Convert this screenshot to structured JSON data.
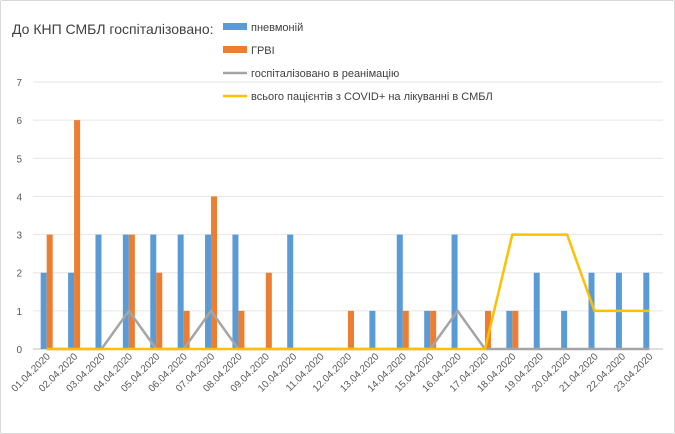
{
  "chart_data": {
    "type": "bar",
    "title": "До КНП СМБЛ госпіталізовано:",
    "xlabel": "",
    "ylabel": "",
    "ylim": [
      0,
      7
    ],
    "yticks": [
      "0",
      "1",
      "2",
      "3",
      "4",
      "5",
      "6",
      "7"
    ],
    "grid": true,
    "legend_position": "top",
    "categories": [
      "01.04.2020",
      "02.04.2020",
      "03.04.2020",
      "04.04.2020",
      "05.04.2020",
      "06.04.2020",
      "07.04.2020",
      "08.04.2020",
      "09.04.2020",
      "10.04.2020",
      "11.04.2020",
      "12.04.2020",
      "13.04.2020",
      "14.04.2020",
      "15.04.2020",
      "16.04.2020",
      "17.04.2020",
      "18.04.2020",
      "19.04.2020",
      "20.04.2020",
      "21.04.2020",
      "22.04.2020",
      "23.04.2020"
    ],
    "series": [
      {
        "name": "пневмоній",
        "kind": "bar",
        "color": "#5b9bd5",
        "values": [
          2,
          2,
          3,
          3,
          3,
          3,
          3,
          3,
          0,
          3,
          0,
          0,
          1,
          3,
          1,
          3,
          0,
          1,
          2,
          1,
          2,
          2,
          2
        ]
      },
      {
        "name": "ГРВІ",
        "kind": "bar",
        "color": "#ed7d31",
        "values": [
          3,
          6,
          0,
          3,
          2,
          1,
          4,
          1,
          2,
          0,
          0,
          1,
          0,
          1,
          1,
          0,
          1,
          1,
          0,
          0,
          0,
          0,
          0
        ]
      },
      {
        "name": "госпіталізовано в реанімацію",
        "kind": "line",
        "color": "#a5a5a5",
        "values": [
          0,
          0,
          0,
          1,
          0,
          0,
          1,
          0,
          0,
          0,
          0,
          0,
          0,
          0,
          0,
          1,
          0,
          0,
          0,
          0,
          0,
          0,
          0
        ]
      },
      {
        "name": "всього пацієнтів з COVID+ на лікуванні в СМБЛ",
        "kind": "line",
        "color": "#ffc000",
        "values": [
          0,
          0,
          0,
          0,
          0,
          0,
          0,
          0,
          0,
          0,
          0,
          0,
          0,
          0,
          0,
          0,
          0,
          3,
          3,
          3,
          1,
          1,
          1
        ]
      }
    ]
  }
}
